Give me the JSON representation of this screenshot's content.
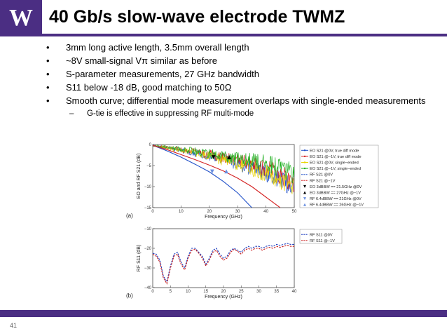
{
  "logo": {
    "text": "W"
  },
  "title": "40 Gb/s slow-wave electrode TWMZ",
  "bullets": [
    "3mm long active length, 3.5mm overall length",
    "~8V small-signal Vπ similar as before",
    "S-parameter measurements, 27 GHz bandwidth",
    "S11 below -18 dB, good  matching to 50Ω",
    "Smooth curve; differential mode measurement overlaps with single-ended measurements"
  ],
  "sub_bullet": "G-tie is effective in suppressing RF multi-mode",
  "page_number": "41",
  "colors": {
    "accent": "#4b2e83"
  },
  "chart_data": [
    {
      "type": "line",
      "panel_label": "(a)",
      "xlabel": "Frequency (GHz)",
      "ylabel": "EO and RF S21 (dB)",
      "xlim": [
        0,
        50
      ],
      "ylim": [
        -15,
        0
      ],
      "xticks": [
        0,
        10,
        20,
        30,
        40,
        50
      ],
      "yticks": [
        0,
        -5,
        -10,
        -15
      ],
      "legend": [
        "EO S21 @0V, true diff mode",
        "EO S21 @−1V, true diff mode",
        "EO S21 @0V, single−ended",
        "EO S21 @−1V, single−ended",
        "RF S21 @0V",
        "RF S21 @−1V",
        "EO 3dBBW == 21.5GHz @0V",
        "EO 3dBBW == 27GHz @−1V",
        "RF 6.4dBBW == 21GHz @0V",
        "RF 6.4dBBW == 26GHz @−1V"
      ],
      "series": [
        {
          "name": "EO S21 @0V, true diff mode",
          "color": "#1f4fc8",
          "noisy": true,
          "x": [
            0,
            5,
            10,
            15,
            20,
            25,
            30,
            35,
            40,
            45,
            50
          ],
          "y": [
            -0.3,
            -0.8,
            -1.4,
            -2.1,
            -2.9,
            -3.7,
            -4.6,
            -5.6,
            -6.8,
            -8.2,
            -9.8
          ]
        },
        {
          "name": "EO S21 @−1V, true diff mode",
          "color": "#d42020",
          "noisy": true,
          "x": [
            0,
            5,
            10,
            15,
            20,
            25,
            30,
            35,
            40,
            45,
            50
          ],
          "y": [
            -0.3,
            -0.7,
            -1.2,
            -1.8,
            -2.4,
            -3.0,
            -3.7,
            -4.6,
            -5.6,
            -7.2,
            -9.0
          ]
        },
        {
          "name": "EO S21 @0V, single−ended",
          "color": "#e8d400",
          "noisy": true,
          "x": [
            0,
            5,
            10,
            15,
            20,
            25,
            30,
            35,
            40,
            45,
            50
          ],
          "y": [
            -0.3,
            -0.8,
            -1.4,
            -2.0,
            -2.8,
            -3.7,
            -4.6,
            -5.7,
            -7.0,
            -8.5,
            -10.0
          ]
        },
        {
          "name": "EO S21 @−1V, single−ended",
          "color": "#22b022",
          "noisy": true,
          "x": [
            0,
            5,
            10,
            15,
            20,
            25,
            30,
            35,
            40,
            45,
            50
          ],
          "y": [
            -0.2,
            -0.6,
            -1.1,
            -1.6,
            -2.2,
            -2.8,
            -3.3,
            -3.9,
            -4.5,
            -5.5,
            -6.7
          ]
        },
        {
          "name": "RF S21 @0V",
          "color": "#1f4fc8",
          "noisy": false,
          "x": [
            0,
            5,
            10,
            15,
            20,
            25,
            30,
            35
          ],
          "y": [
            -0.2,
            -1.5,
            -3.0,
            -4.7,
            -6.5,
            -8.8,
            -11.5,
            -15.0
          ]
        },
        {
          "name": "RF S21 @−1V",
          "color": "#d42020",
          "noisy": false,
          "x": [
            0,
            5,
            10,
            15,
            20,
            25,
            30,
            35,
            40,
            45
          ],
          "y": [
            -0.2,
            -1.2,
            -2.4,
            -3.6,
            -4.9,
            -6.3,
            -8.0,
            -10.0,
            -12.5,
            -15.0
          ]
        }
      ],
      "markers": [
        {
          "name": "EO 3dBBW == 21.5GHz @0V",
          "symbol": "tri-down",
          "color": "#000000",
          "x": 21.5,
          "y": -3
        },
        {
          "name": "EO 3dBBW == 27GHz @−1V",
          "symbol": "tri-up",
          "color": "#000000",
          "x": 27,
          "y": -3
        },
        {
          "name": "RF 6.4dBBW == 21GHz @0V",
          "symbol": "tri-down",
          "color": "#6a8fe0",
          "x": 21,
          "y": -6.4
        },
        {
          "name": "RF 6.4dBBW == 26GHz @−1V",
          "symbol": "tri-up",
          "color": "#6a8fe0",
          "x": 26,
          "y": -6.4
        }
      ]
    },
    {
      "type": "line",
      "panel_label": "(b)",
      "xlabel": "Frequency (GHz)",
      "ylabel": "RF S11 (dB)",
      "xlim": [
        0,
        40
      ],
      "ylim": [
        -40,
        -10
      ],
      "xticks": [
        0,
        5,
        10,
        15,
        20,
        25,
        30,
        35,
        40
      ],
      "yticks": [
        -10,
        -20,
        -30,
        -40
      ],
      "legend": [
        "RF S11 @0V",
        "RF S11 @−1V"
      ],
      "series": [
        {
          "name": "RF S11 @0V",
          "color": "#1f3fc0",
          "dash": true,
          "x": [
            0,
            1,
            2,
            3,
            4,
            5,
            6,
            7,
            8,
            9,
            10,
            11,
            12,
            13,
            14,
            15,
            16,
            17,
            18,
            19,
            20,
            21,
            22,
            23,
            24,
            25,
            26,
            27,
            28,
            29,
            30,
            31,
            32,
            33,
            34,
            35,
            36,
            37,
            38,
            39,
            40
          ],
          "y": [
            -22.5,
            -23,
            -26,
            -34,
            -37,
            -29,
            -23,
            -22,
            -27,
            -30,
            -24,
            -20,
            -20,
            -22,
            -24,
            -28,
            -25,
            -21,
            -20,
            -23,
            -25,
            -24,
            -21,
            -20,
            -21,
            -22,
            -20,
            -19,
            -20,
            -19,
            -19,
            -20,
            -19,
            -18.5,
            -19,
            -18,
            -18.5,
            -18,
            -17.5,
            -18,
            -18
          ]
        },
        {
          "name": "RF S11 @−1V",
          "color": "#c81e1e",
          "dash": true,
          "x": [
            0,
            1,
            2,
            3,
            4,
            5,
            6,
            7,
            8,
            9,
            10,
            11,
            12,
            13,
            14,
            15,
            16,
            17,
            18,
            19,
            20,
            21,
            22,
            23,
            24,
            25,
            26,
            27,
            28,
            29,
            30,
            31,
            32,
            33,
            34,
            35,
            36,
            37,
            38,
            39,
            40
          ],
          "y": [
            -23,
            -24,
            -27,
            -35,
            -38,
            -30,
            -24,
            -23,
            -28,
            -31,
            -25,
            -21,
            -20.5,
            -22.5,
            -25,
            -29,
            -26,
            -22,
            -21,
            -24,
            -26,
            -25,
            -22,
            -20.5,
            -21.5,
            -23,
            -21,
            -20,
            -21,
            -20,
            -20,
            -21,
            -20,
            -19.5,
            -20,
            -19,
            -19.5,
            -19,
            -18.5,
            -19,
            -19
          ]
        }
      ]
    }
  ]
}
